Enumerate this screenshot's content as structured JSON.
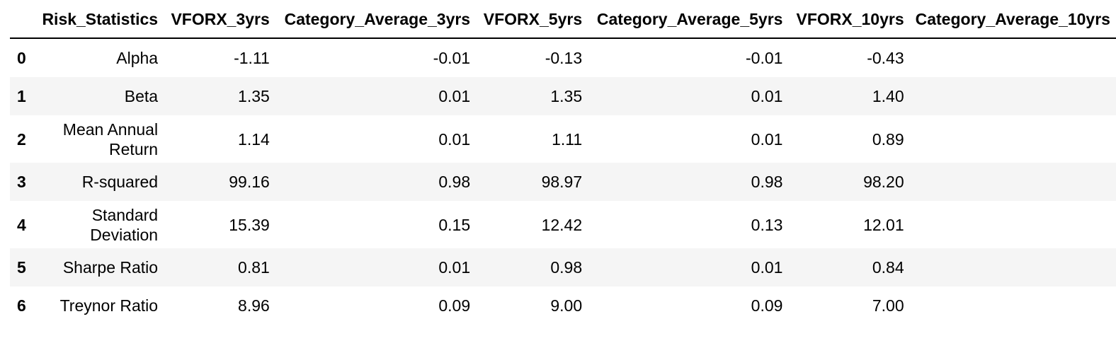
{
  "table": {
    "columns": [
      "",
      "Risk_Statistics",
      "VFORX_3yrs",
      "Category_Average_3yrs",
      "VFORX_5yrs",
      "Category_Average_5yrs",
      "VFORX_10yrs",
      "Category_Average_10yrs"
    ],
    "rows": [
      {
        "index": "0",
        "cells": [
          "Alpha",
          "-1.11",
          "-0.01",
          "-0.13",
          "-0.01",
          "-0.43",
          ""
        ]
      },
      {
        "index": "1",
        "cells": [
          "Beta",
          "1.35",
          "0.01",
          "1.35",
          "0.01",
          "1.40",
          ""
        ]
      },
      {
        "index": "2",
        "cells": [
          "Mean Annual Return",
          "1.14",
          "0.01",
          "1.11",
          "0.01",
          "0.89",
          ""
        ]
      },
      {
        "index": "3",
        "cells": [
          "R-squared",
          "99.16",
          "0.98",
          "98.97",
          "0.98",
          "98.20",
          ""
        ]
      },
      {
        "index": "4",
        "cells": [
          "Standard Deviation",
          "15.39",
          "0.15",
          "12.42",
          "0.13",
          "12.01",
          ""
        ]
      },
      {
        "index": "5",
        "cells": [
          "Sharpe Ratio",
          "0.81",
          "0.01",
          "0.98",
          "0.01",
          "0.84",
          ""
        ]
      },
      {
        "index": "6",
        "cells": [
          "Treynor Ratio",
          "8.96",
          "0.09",
          "9.00",
          "0.09",
          "7.00",
          ""
        ]
      }
    ]
  }
}
